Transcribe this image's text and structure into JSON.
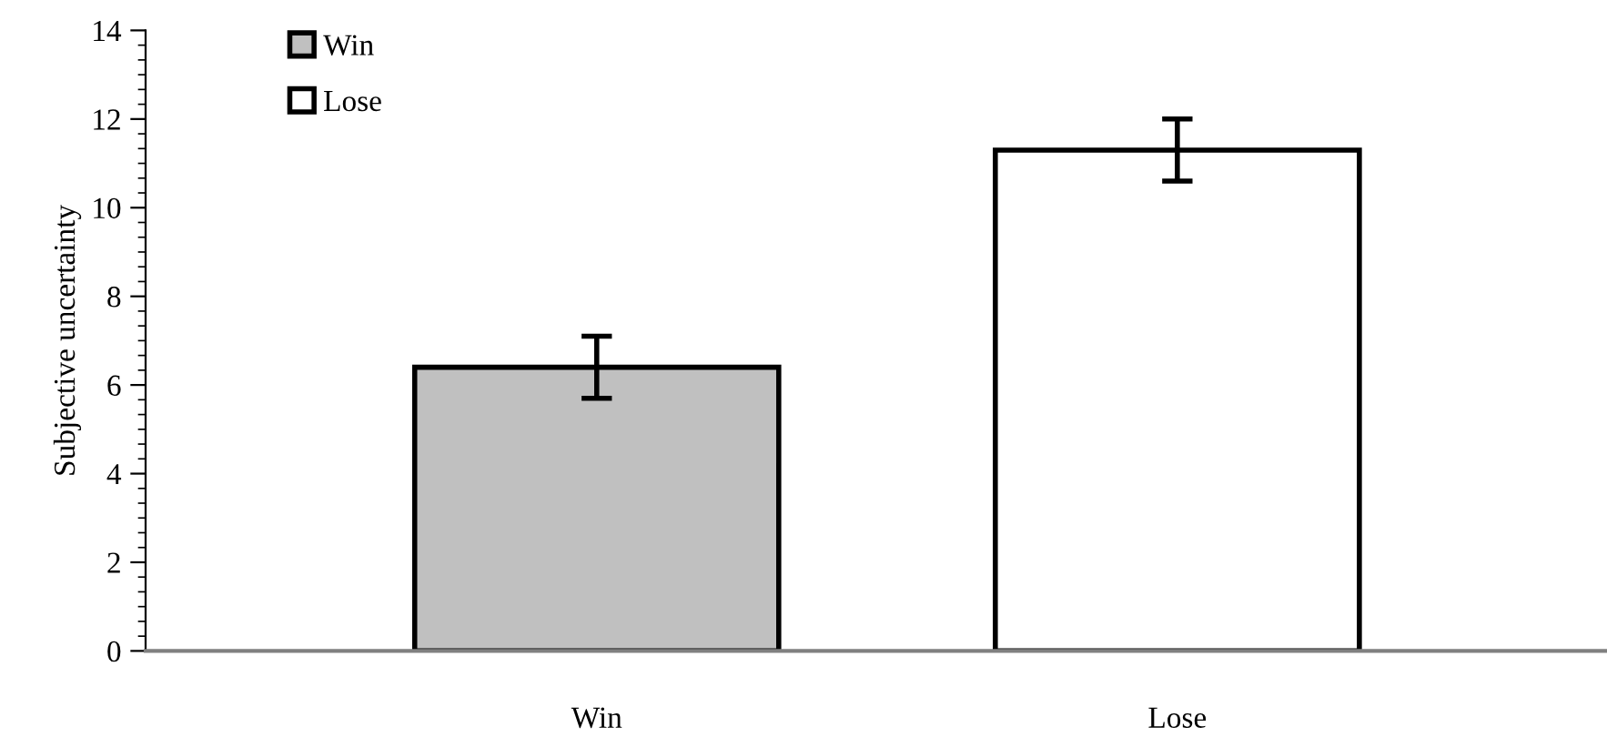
{
  "chart_data": {
    "type": "bar",
    "ylabel": "Subjective uncertainty",
    "categories": [
      "Win",
      "Lose"
    ],
    "series": [
      {
        "name": "Win",
        "color": "#c0c0c0",
        "values": [
          6.4,
          null
        ],
        "errors": [
          0.7,
          null
        ]
      },
      {
        "name": "Lose",
        "color": "#ffffff",
        "values": [
          null,
          11.3
        ],
        "errors": [
          null,
          0.7
        ]
      }
    ],
    "ylim": [
      0,
      14
    ],
    "yticks": [
      0,
      2,
      4,
      6,
      8,
      10,
      12,
      14
    ],
    "grid": false,
    "legend": "top left"
  }
}
